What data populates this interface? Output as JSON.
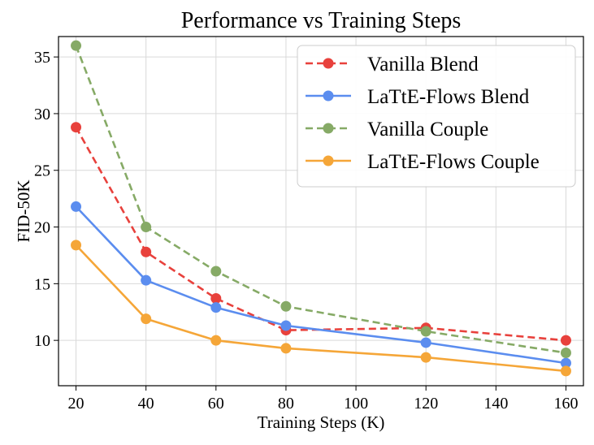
{
  "chart_data": {
    "type": "line",
    "title": "Performance vs Training Steps",
    "xlabel": "Training Steps (K)",
    "ylabel": "FID-50K",
    "x": [
      20,
      40,
      60,
      80,
      120,
      160
    ],
    "xlim": [
      15,
      165
    ],
    "ylim": [
      6.0,
      36.8
    ],
    "xticks": [
      20,
      40,
      60,
      80,
      100,
      120,
      140,
      160
    ],
    "yticks": [
      10,
      15,
      20,
      25,
      30,
      35
    ],
    "grid": true,
    "legend_position": "top-right",
    "series": [
      {
        "name": "Vanilla Blend",
        "color": "#e8413c",
        "style": "dashed",
        "values": [
          28.8,
          17.8,
          13.7,
          10.9,
          11.1,
          10.0
        ]
      },
      {
        "name": "LaTtE-Flows Blend",
        "color": "#5b8def",
        "style": "solid",
        "values": [
          21.8,
          15.3,
          12.9,
          11.3,
          9.8,
          8.0
        ]
      },
      {
        "name": "Vanilla Couple",
        "color": "#86aa66",
        "style": "dashed",
        "values": [
          36.0,
          20.0,
          16.1,
          13.0,
          10.8,
          8.9
        ]
      },
      {
        "name": "LaTtE-Flows Couple",
        "color": "#f5a638",
        "style": "solid",
        "values": [
          18.4,
          11.9,
          10.0,
          9.3,
          8.5,
          7.3
        ]
      }
    ]
  }
}
